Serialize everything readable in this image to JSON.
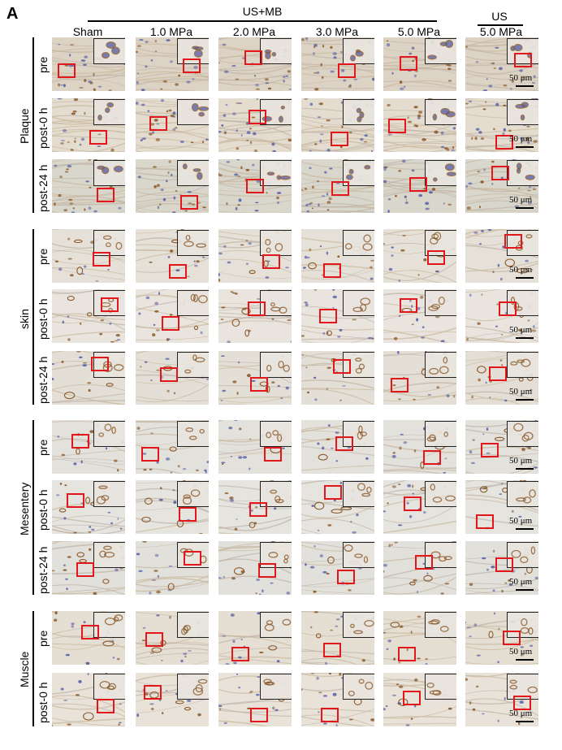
{
  "panel_letter": "A",
  "header": {
    "group_usmb": "US+MB",
    "group_us": "US",
    "columns": [
      "Sham",
      "1.0 MPa",
      "2.0 MPa",
      "3.0 MPa",
      "5.0 MPa",
      "5.0 MPa"
    ]
  },
  "groups": [
    {
      "name": "Plaque",
      "rows": [
        "pre",
        "post-0 h",
        "post-24 h"
      ],
      "tone": [
        "#ddd3c4",
        "#e4dccf",
        "#d9d6cc"
      ]
    },
    {
      "name": "skin",
      "rows": [
        "pre",
        "post-0 h",
        "post-24 h"
      ],
      "tone": [
        "#e6e1d8",
        "#e9e5de",
        "#e3dfd6"
      ]
    },
    {
      "name": "Mesentery",
      "rows": [
        "pre",
        "post-0 h",
        "post-24 h"
      ],
      "tone": [
        "#e3e1dc",
        "#e6e4df",
        "#e2e0da"
      ]
    },
    {
      "name": "Muscle",
      "rows": [
        "pre",
        "post-0 h"
      ],
      "tone": [
        "#e5ded3",
        "#e8e2d9"
      ]
    }
  ],
  "scale_label": "50 μm",
  "colors": {
    "roi": "#e3161b",
    "stain_brown": "#8a5a2b",
    "stain_blue": "#5a63a8"
  }
}
